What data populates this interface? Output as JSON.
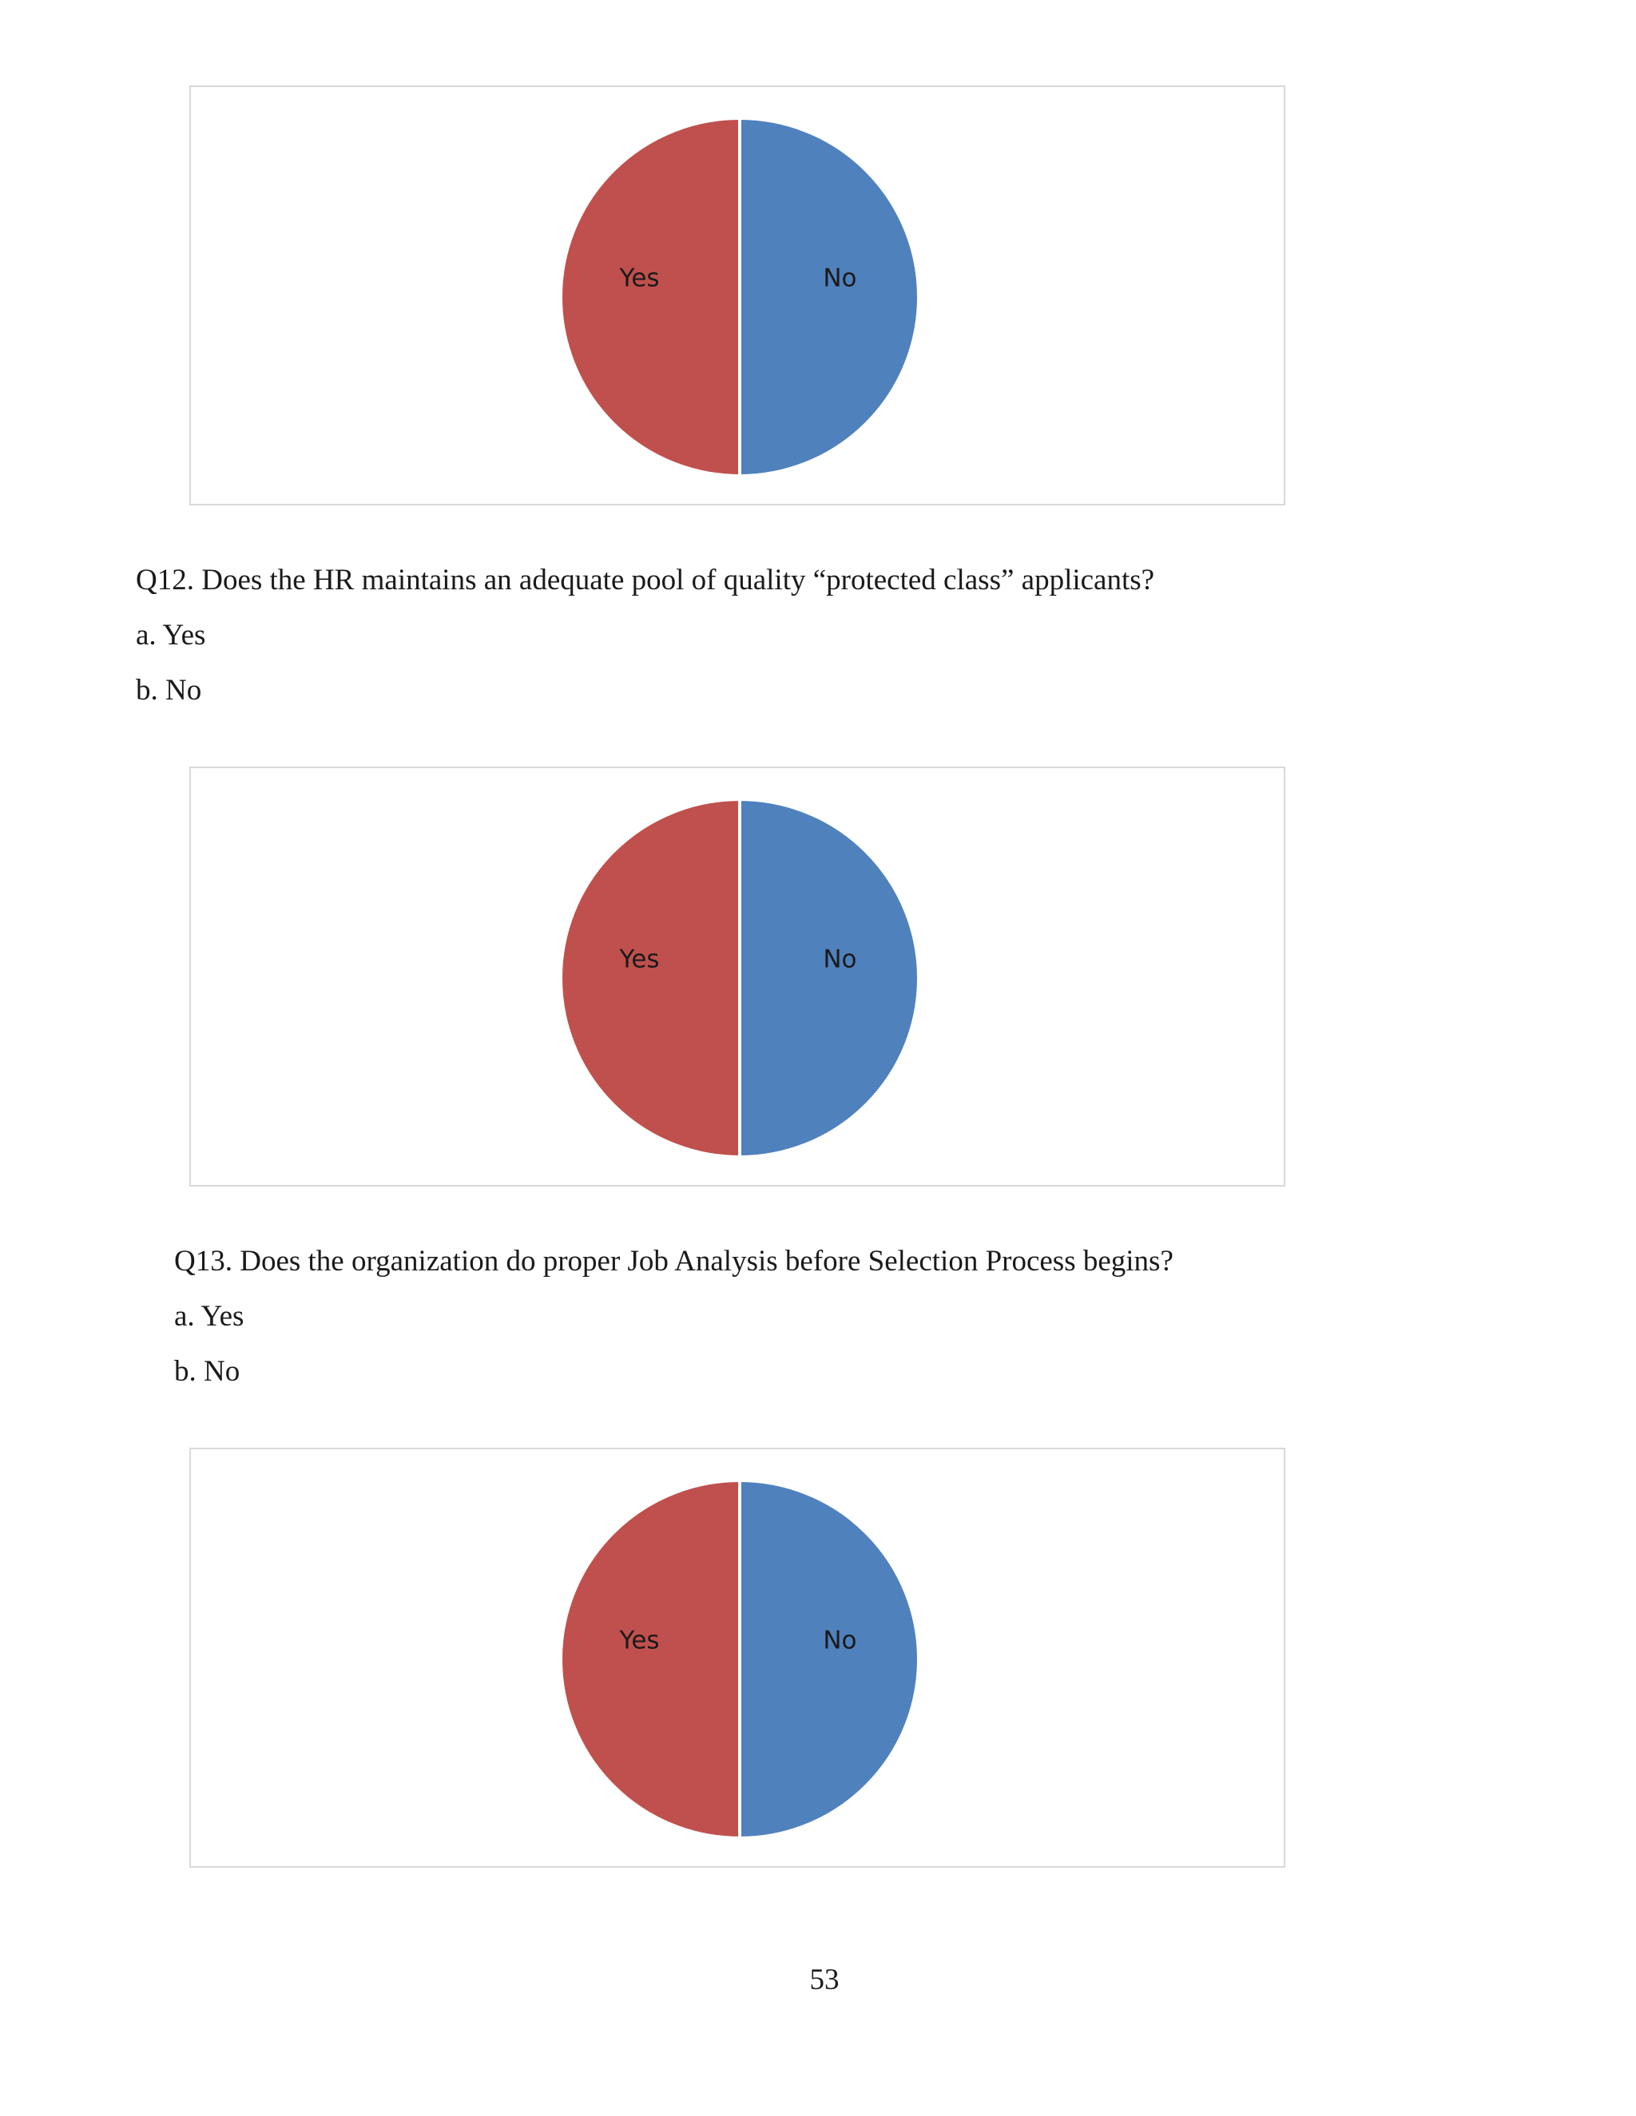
{
  "colors": {
    "yes": "#C0504D",
    "no": "#4F81BD",
    "label_text": "#1a1a1a",
    "frame": "#d9d9d9"
  },
  "chart_data": [
    {
      "type": "pie",
      "categories": [
        "Yes",
        "No"
      ],
      "values": [
        50,
        50
      ],
      "title": ""
    },
    {
      "type": "pie",
      "categories": [
        "Yes",
        "No"
      ],
      "values": [
        50,
        50
      ],
      "title": ""
    },
    {
      "type": "pie",
      "categories": [
        "Yes",
        "No"
      ],
      "values": [
        50,
        50
      ],
      "title": ""
    }
  ],
  "questions": {
    "q12": {
      "text": "Q12. Does the HR maintains an adequate pool of quality “protected class” applicants?",
      "option_a": "a. Yes",
      "option_b": "b. No"
    },
    "q13": {
      "text": "Q13. Does the organization do proper Job Analysis before Selection Process begins?",
      "option_a": "a. Yes",
      "option_b": "b. No"
    }
  },
  "page_number": "53"
}
